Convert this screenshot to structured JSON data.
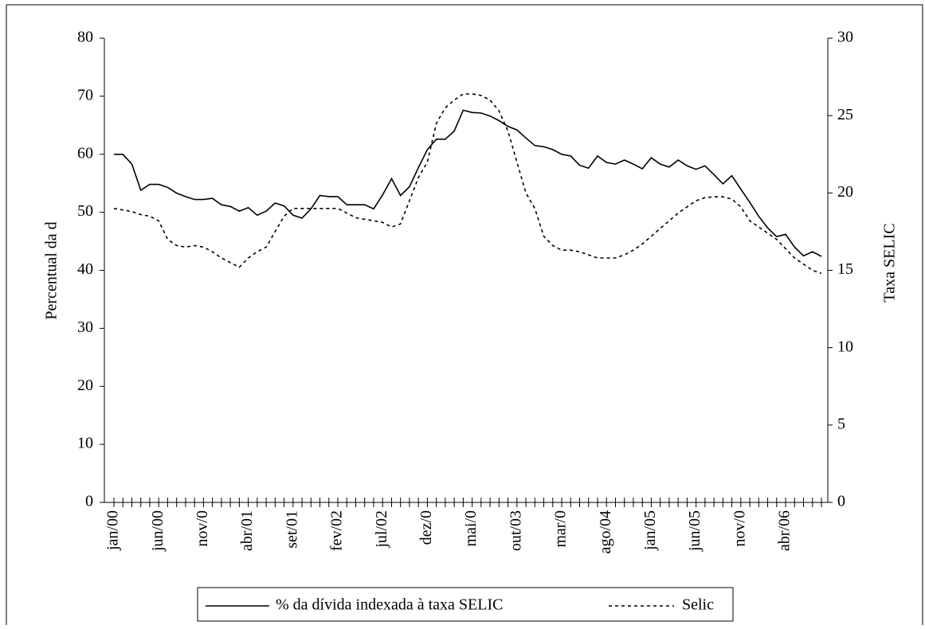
{
  "chart_data": {
    "type": "line",
    "y_label": "Percentual da d",
    "y2_label": "Taxa SELIC",
    "categories": [
      "jan/00",
      null,
      null,
      null,
      null,
      "jun/00",
      null,
      null,
      null,
      null,
      "nov/0",
      null,
      null,
      null,
      null,
      "abr/01",
      null,
      null,
      null,
      null,
      "set/01",
      null,
      null,
      null,
      null,
      "fev/02",
      null,
      null,
      null,
      null,
      "jul/02",
      null,
      null,
      null,
      null,
      "dez/0",
      null,
      null,
      null,
      null,
      "mai/0",
      null,
      null,
      null,
      null,
      "out/03",
      null,
      null,
      null,
      null,
      "mar/0",
      null,
      null,
      null,
      null,
      "ago/04",
      null,
      null,
      null,
      null,
      "jan/05",
      null,
      null,
      null,
      null,
      "jun/05",
      null,
      null,
      null,
      null,
      "nov/0",
      null,
      null,
      null,
      null,
      "abr/06",
      null,
      null,
      null,
      null
    ],
    "series": [
      {
        "name": "% da dívida indexada à taxa SELIC",
        "color": "#000000",
        "dash": "solid",
        "values": [
          60,
          60,
          58.3,
          53.8,
          54.8,
          54.8,
          54.3,
          53.3,
          52.7,
          52.2,
          52.2,
          52.4,
          51.3,
          51,
          50.2,
          50.8,
          49.5,
          50.2,
          51.6,
          51.1,
          49.5,
          49,
          50.6,
          52.9,
          52.7,
          52.7,
          51.3,
          51.3,
          51.3,
          50.6,
          53,
          55.8,
          52.9,
          54.4,
          57.7,
          60.8,
          62.6,
          62.6,
          64,
          67.6,
          67.2,
          67.1,
          66.6,
          65.8,
          64.8,
          64.2,
          62.8,
          61.5,
          61.3,
          60.8,
          60,
          59.7,
          58.1,
          57.6,
          59.7,
          58.6,
          58.3,
          59,
          58.3,
          57.5,
          59.4,
          58.3,
          57.8,
          59,
          58,
          57.4,
          58,
          56.5,
          54.9,
          56.3,
          54,
          51.7,
          49.3,
          47.3,
          45.8,
          46.2,
          44,
          42.5,
          43.2,
          42.4
        ]
      },
      {
        "name": "Selic",
        "color": "#000000",
        "dash": "dotted",
        "axis": "y2",
        "values": [
          19,
          18.9,
          18.8,
          18.6,
          18.5,
          18.2,
          17,
          16.6,
          16.5,
          16.6,
          16.5,
          16.2,
          15.8,
          15.5,
          15.2,
          15.8,
          16.2,
          16.5,
          17.5,
          18.5,
          19,
          19,
          19,
          19,
          19,
          19,
          18.7,
          18.4,
          18.3,
          18.2,
          18.1,
          17.8,
          18,
          19.5,
          21,
          22,
          24.5,
          25.5,
          26,
          26.4,
          26.4,
          26.3,
          26,
          25.3,
          24,
          22,
          20,
          19,
          17.2,
          16.6,
          16.3,
          16.3,
          16.2,
          16,
          15.8,
          15.8,
          15.8,
          16,
          16.3,
          16.7,
          17.2,
          17.7,
          18.2,
          18.7,
          19.1,
          19.5,
          19.7,
          19.75,
          19.75,
          19.6,
          19.1,
          18.2,
          17.8,
          17.4,
          17,
          16.4,
          15.8,
          15.4,
          15,
          14.8
        ]
      }
    ],
    "ylim": [
      0,
      80
    ],
    "yticks": [
      0,
      10,
      20,
      30,
      40,
      50,
      60,
      70,
      80
    ],
    "y2lim": [
      0,
      30
    ],
    "y2ticks": [
      0,
      5,
      10,
      15,
      20,
      25,
      30
    ],
    "grid": false,
    "legend": "bottom"
  }
}
